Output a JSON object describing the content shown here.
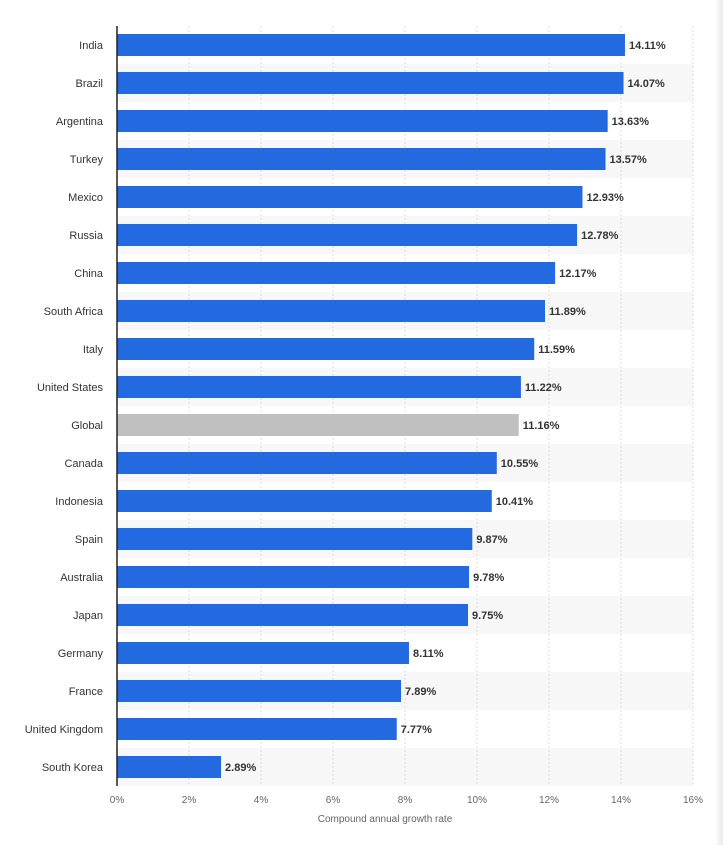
{
  "chart_data": {
    "type": "bar",
    "orientation": "horizontal",
    "categories": [
      "India",
      "Brazil",
      "Argentina",
      "Turkey",
      "Mexico",
      "Russia",
      "China",
      "South Africa",
      "Italy",
      "United States",
      "Global",
      "Canada",
      "Indonesia",
      "Spain",
      "Australia",
      "Japan",
      "Germany",
      "France",
      "United Kingdom",
      "South Korea"
    ],
    "values": [
      14.11,
      14.07,
      13.63,
      13.57,
      12.93,
      12.78,
      12.17,
      11.89,
      11.59,
      11.22,
      11.16,
      10.55,
      10.41,
      9.87,
      9.78,
      9.75,
      8.11,
      7.89,
      7.77,
      2.89
    ],
    "value_labels": [
      "14.11%",
      "14.07%",
      "13.63%",
      "13.57%",
      "12.93%",
      "12.78%",
      "12.17%",
      "11.89%",
      "11.59%",
      "11.22%",
      "11.16%",
      "10.55%",
      "10.41%",
      "9.87%",
      "9.78%",
      "9.75%",
      "8.11%",
      "7.89%",
      "7.77%",
      "2.89%"
    ],
    "highlight_category": "Global",
    "xlim": [
      0,
      16
    ],
    "x_ticks": [
      0,
      2,
      4,
      6,
      8,
      10,
      12,
      14,
      16
    ],
    "x_tick_labels": [
      "0%",
      "2%",
      "4%",
      "6%",
      "8%",
      "10%",
      "12%",
      "14%",
      "16%"
    ],
    "xlabel": "Compound annual growth rate",
    "ylabel": "",
    "title": "",
    "grid": "vertical dashed",
    "colors": {
      "bar": "#2369e0",
      "highlight_bar": "#c0c0c0",
      "band": "#f7f7f7",
      "grid": "#dddddd",
      "axis": "#222222"
    }
  }
}
